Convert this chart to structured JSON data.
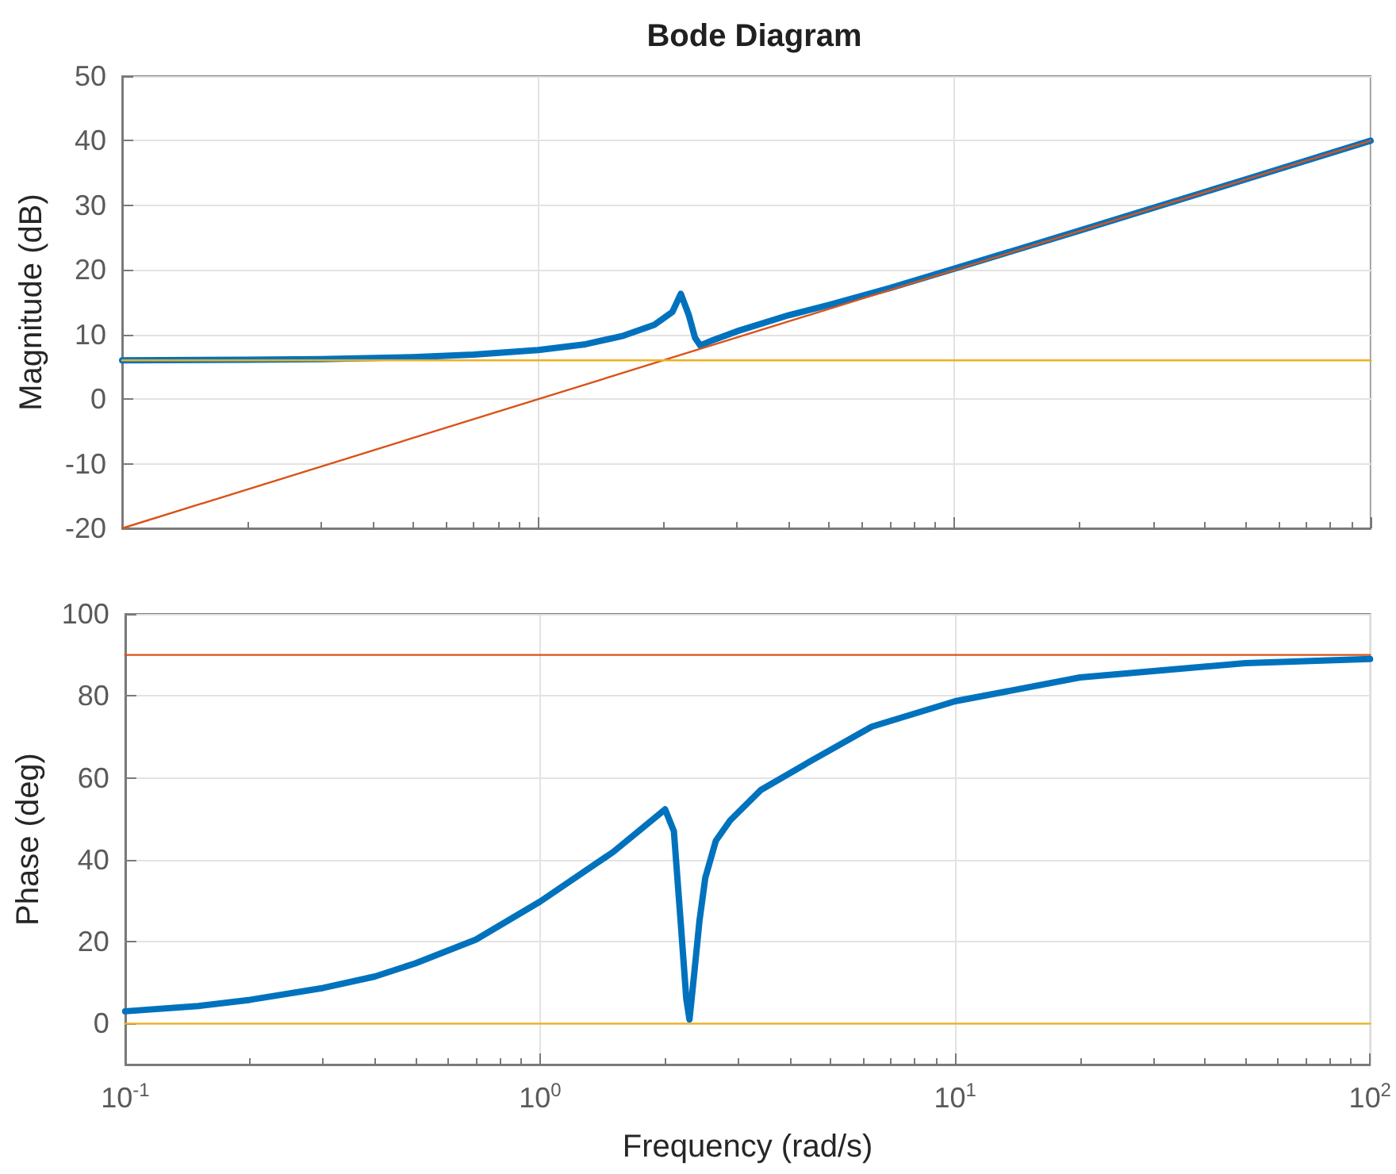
{
  "chart_data": [
    {
      "type": "line",
      "title": "Bode Diagram",
      "ylabel": "Magnitude (dB)",
      "log": "x",
      "grid": true,
      "marker": "none",
      "line_style": "solid",
      "tick_labels": "y",
      "xlim": [
        0.1,
        100
      ],
      "xticks": [
        {
          "value": 0.1,
          "label": null
        },
        {
          "value": 1,
          "label": null
        },
        {
          "value": 10,
          "label": null
        },
        {
          "value": 100,
          "label": null
        }
      ],
      "ylim": [
        -20,
        50
      ],
      "yticks": [
        -20,
        -10,
        0,
        10,
        20,
        30,
        40,
        50
      ],
      "series": [
        {
          "color": "#0072bd",
          "x": [
            0.1,
            0.2,
            0.3,
            0.5,
            0.7,
            1,
            1.3,
            1.6,
            1.9,
            2.1,
            2.2,
            2.3,
            2.38,
            2.45,
            2.6,
            3,
            4,
            5,
            7,
            10,
            20,
            50,
            100
          ],
          "values": [
            6,
            6.1,
            6.2,
            6.5,
            6.9,
            7.6,
            8.5,
            9.8,
            11.5,
            13.5,
            16.3,
            13,
            9.5,
            8.3,
            9,
            10.5,
            13,
            14.6,
            17.2,
            20.2,
            26.1,
            34,
            40
          ]
        },
        {
          "color": "#d95319",
          "x": [
            0.1,
            100
          ],
          "values": [
            -20,
            40
          ]
        },
        {
          "color": "#edb120",
          "x": [
            0.1,
            100
          ],
          "values": [
            6,
            6
          ]
        }
      ]
    },
    {
      "type": "line",
      "xlabel": "Frequency (rad/s)",
      "ylabel": "Phase (deg)",
      "log": "x",
      "grid": true,
      "marker": "none",
      "line_style": "solid",
      "xlim": [
        0.1,
        100
      ],
      "xticks": [
        {
          "value": 0.1,
          "label": "10$^{-1}$"
        },
        {
          "value": 1,
          "label": "10$^{0}$"
        },
        {
          "value": 10,
          "label": "10$^{1}$"
        },
        {
          "value": 100,
          "label": "10$^{2}$"
        }
      ],
      "ylim": [
        -10,
        100
      ],
      "yticks": [
        0,
        20,
        40,
        60,
        80,
        100
      ],
      "series": [
        {
          "color": "#0072bd",
          "x": [
            0.1,
            0.15,
            0.2,
            0.3,
            0.4,
            0.5,
            0.7,
            1,
            1.5,
            2,
            2.1,
            2.18,
            2.25,
            2.29,
            2.35,
            2.42,
            2.5,
            2.65,
            2.87,
            3.4,
            4.47,
            6.3,
            10,
            20,
            50,
            100
          ],
          "values": [
            3,
            4.3,
            5.8,
            8.7,
            11.5,
            14.7,
            20.5,
            29.8,
            41.9,
            52.3,
            47,
            25,
            6,
            1,
            12,
            25,
            35.6,
            44.6,
            49.6,
            57,
            64,
            72.5,
            78.7,
            84.5,
            88,
            89
          ]
        },
        {
          "color": "#d95319",
          "x": [
            0.1,
            100
          ],
          "values": [
            90,
            90
          ]
        },
        {
          "color": "#edb120",
          "x": [
            0.1,
            100
          ],
          "values": [
            0,
            0
          ]
        }
      ]
    }
  ]
}
